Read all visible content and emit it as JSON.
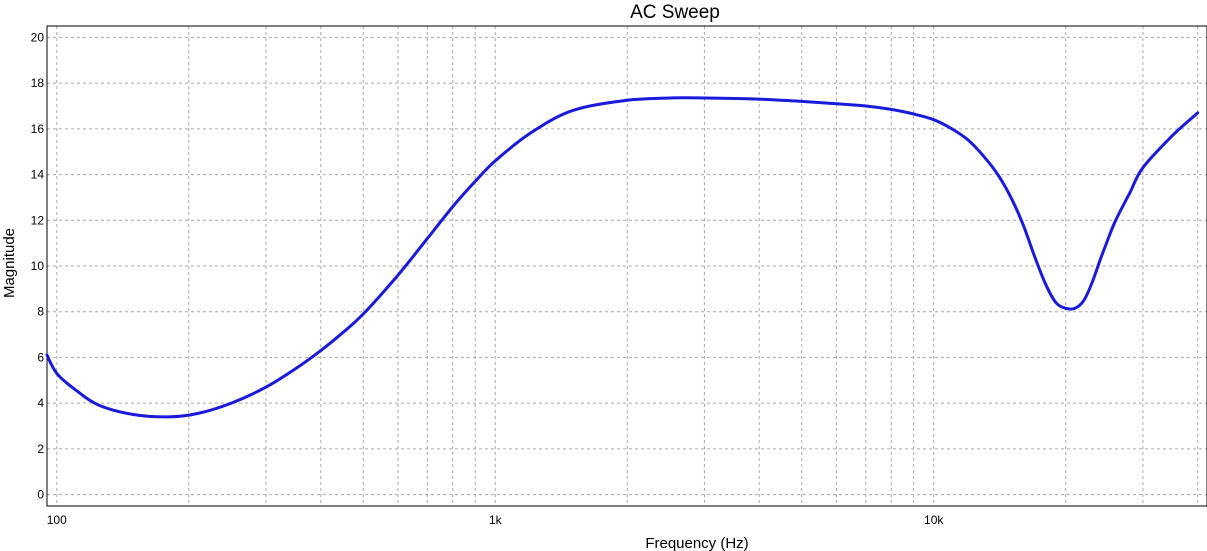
{
  "chart_data": {
    "type": "line",
    "title": "AC Sweep",
    "xlabel": "Frequency (Hz)",
    "ylabel": "Magnitude",
    "x_scale": "log",
    "xlim": [
      95,
      42000
    ],
    "ylim": [
      -0.5,
      20.5
    ],
    "x_ticks": [
      {
        "value": 100,
        "label": "100"
      },
      {
        "value": 1000,
        "label": "1k"
      },
      {
        "value": 10000,
        "label": "10k"
      }
    ],
    "y_ticks": [
      0,
      2,
      4,
      6,
      8,
      10,
      12,
      14,
      16,
      18,
      20
    ],
    "grid": true,
    "line_color": "#1a1adc",
    "series": [
      {
        "x": [
          95,
          100,
          110,
          125,
          150,
          180,
          210,
          250,
          300,
          350,
          400,
          450,
          500,
          600,
          700,
          800,
          900,
          1000,
          1200,
          1500,
          2000,
          2500,
          3000,
          4000,
          5000,
          6000,
          7000,
          8000,
          9000,
          10000,
          11000,
          12000,
          13000,
          14000,
          15000,
          16000,
          17000,
          18000,
          19000,
          20000,
          21000,
          22000,
          23000,
          24000,
          25000,
          26000,
          28000,
          30000,
          35000,
          40000
        ],
        "values": [
          6.1,
          5.3,
          4.6,
          3.9,
          3.5,
          3.4,
          3.55,
          4.0,
          4.7,
          5.5,
          6.3,
          7.1,
          7.9,
          9.6,
          11.2,
          12.6,
          13.7,
          14.6,
          15.8,
          16.8,
          17.25,
          17.35,
          17.35,
          17.3,
          17.2,
          17.1,
          17.0,
          16.85,
          16.65,
          16.4,
          16.0,
          15.5,
          14.8,
          14.0,
          13.0,
          11.8,
          10.4,
          9.2,
          8.4,
          8.15,
          8.15,
          8.5,
          9.3,
          10.3,
          11.2,
          12.0,
          13.2,
          14.3,
          15.7,
          16.7
        ]
      }
    ]
  }
}
